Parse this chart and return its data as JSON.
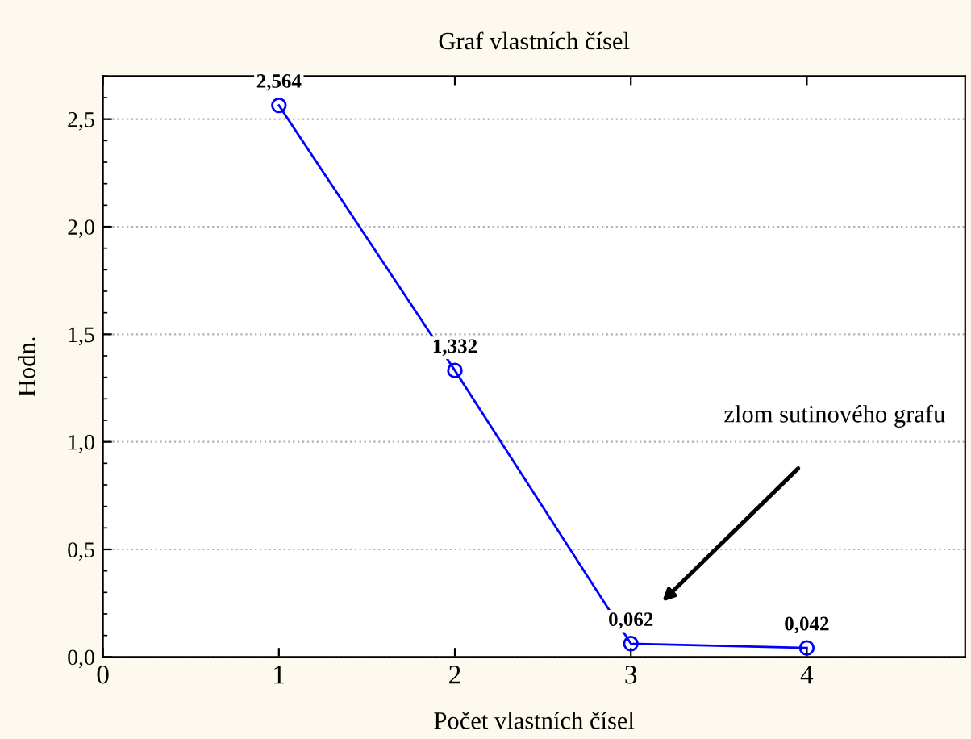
{
  "chart_data": {
    "type": "line",
    "title": "Graf vlastních čísel",
    "xlabel": "Počet vlastních čísel",
    "ylabel": "Hodn.",
    "x": [
      1,
      2,
      3,
      4
    ],
    "series": [
      {
        "color": "#0000ff",
        "values": [
          2.564,
          1.332,
          0.062,
          0.042
        ],
        "value_labels": [
          "2,564",
          "1,332",
          "0,062",
          "0,042"
        ]
      }
    ],
    "xlim": [
      0,
      4.9
    ],
    "xticks": [
      0,
      1,
      2,
      3,
      4
    ],
    "ylim": [
      0,
      2.7
    ],
    "yticks": [
      {
        "value": 0,
        "label": "0,0"
      },
      {
        "value": 0.5,
        "label": "0,5"
      },
      {
        "value": 1,
        "label": "1,0"
      },
      {
        "value": 1.5,
        "label": "1,5"
      },
      {
        "value": 2,
        "label": "2,0"
      },
      {
        "value": 2.5,
        "label": "2,5"
      }
    ],
    "grid": "y",
    "marker": "circle",
    "line_style": "solid",
    "annotations": [
      "zlom sutinového grafu"
    ]
  }
}
